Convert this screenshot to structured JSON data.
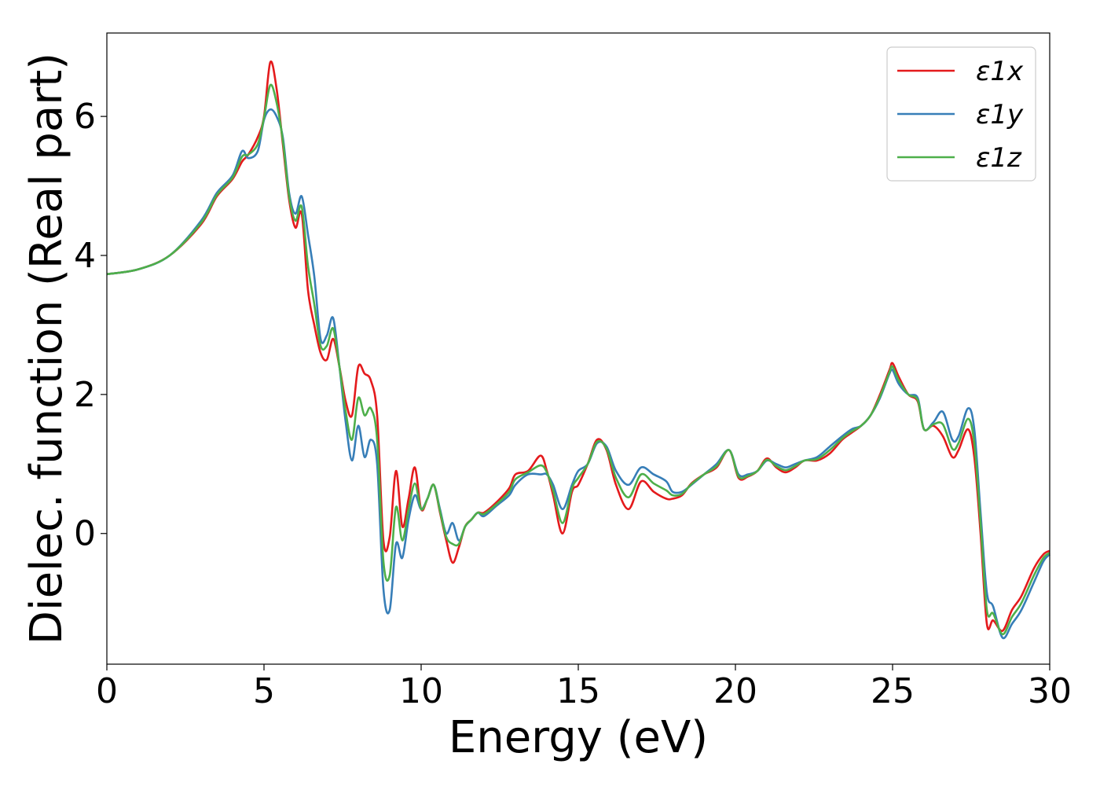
{
  "chart_data": {
    "type": "line",
    "xlabel": "Energy (eV)",
    "ylabel": "Dielec. function (Real part)",
    "xlim": [
      0,
      30
    ],
    "ylim": [
      -1.88,
      7.2
    ],
    "xticks": [
      0,
      5,
      10,
      15,
      20,
      25,
      30
    ],
    "yticks": [
      0,
      2,
      4,
      6
    ],
    "legend_position": "top-right",
    "grid": false,
    "series": [
      {
        "name": "ε1x",
        "color": "#e41a1c",
        "x": [
          0,
          1,
          2,
          3,
          3.5,
          4,
          4.3,
          4.5,
          4.8,
          5.0,
          5.2,
          5.4,
          5.6,
          5.8,
          6.0,
          6.2,
          6.4,
          6.6,
          6.8,
          7.0,
          7.2,
          7.4,
          7.6,
          7.8,
          8.0,
          8.2,
          8.4,
          8.6,
          8.8,
          9.0,
          9.2,
          9.4,
          9.6,
          9.8,
          10.0,
          10.2,
          10.4,
          10.6,
          10.8,
          11.0,
          11.2,
          11.4,
          11.6,
          11.8,
          12.0,
          12.4,
          12.8,
          13.0,
          13.4,
          13.8,
          14.0,
          14.2,
          14.5,
          14.8,
          15.0,
          15.3,
          15.6,
          15.9,
          16.2,
          16.6,
          17.0,
          17.4,
          17.8,
          18.0,
          18.3,
          18.6,
          19.0,
          19.4,
          19.8,
          20.1,
          20.4,
          20.7,
          21.0,
          21.3,
          21.6,
          21.9,
          22.2,
          22.6,
          23.0,
          23.4,
          23.7,
          24.0,
          24.3,
          24.6,
          24.9,
          25.0,
          25.2,
          25.5,
          25.8,
          26.0,
          26.3,
          26.6,
          26.9,
          27.1,
          27.4,
          27.6,
          27.8,
          28.0,
          28.2,
          28.5,
          28.8,
          29.1,
          29.5,
          29.8,
          30.0
        ],
        "y": [
          3.73,
          3.8,
          4.0,
          4.45,
          4.85,
          5.1,
          5.35,
          5.45,
          5.7,
          6.0,
          6.78,
          6.4,
          5.6,
          4.8,
          4.4,
          4.6,
          3.5,
          3.0,
          2.6,
          2.5,
          2.8,
          2.4,
          1.9,
          1.7,
          2.4,
          2.3,
          2.2,
          1.7,
          -0.1,
          -0.05,
          0.9,
          0.1,
          0.5,
          0.95,
          0.35,
          0.5,
          0.7,
          0.3,
          -0.1,
          -0.42,
          -0.2,
          0.1,
          0.2,
          0.3,
          0.3,
          0.45,
          0.65,
          0.85,
          0.9,
          1.12,
          0.9,
          0.55,
          0.0,
          0.6,
          0.7,
          1.0,
          1.35,
          1.2,
          0.7,
          0.35,
          0.75,
          0.6,
          0.5,
          0.5,
          0.55,
          0.72,
          0.85,
          0.95,
          1.2,
          0.8,
          0.82,
          0.9,
          1.08,
          0.95,
          0.88,
          0.95,
          1.05,
          1.05,
          1.15,
          1.35,
          1.45,
          1.55,
          1.7,
          2.0,
          2.35,
          2.45,
          2.25,
          2.0,
          1.9,
          1.5,
          1.55,
          1.4,
          1.1,
          1.2,
          1.5,
          1.1,
          0.0,
          -1.3,
          -1.25,
          -1.4,
          -1.1,
          -0.9,
          -0.5,
          -0.3,
          -0.25
        ]
      },
      {
        "name": "ε1y",
        "color": "#377eb8",
        "x": [
          0,
          1,
          2,
          3,
          3.5,
          4,
          4.3,
          4.5,
          4.8,
          5.0,
          5.2,
          5.4,
          5.6,
          5.8,
          6.0,
          6.2,
          6.4,
          6.6,
          6.8,
          7.0,
          7.2,
          7.4,
          7.6,
          7.8,
          8.0,
          8.2,
          8.4,
          8.6,
          8.8,
          9.0,
          9.2,
          9.4,
          9.6,
          9.8,
          10.0,
          10.2,
          10.4,
          10.6,
          10.8,
          11.0,
          11.2,
          11.4,
          11.6,
          11.8,
          12.0,
          12.4,
          12.8,
          13.0,
          13.4,
          13.8,
          14.0,
          14.2,
          14.5,
          14.8,
          15.0,
          15.3,
          15.6,
          15.9,
          16.2,
          16.6,
          17.0,
          17.4,
          17.8,
          18.0,
          18.3,
          18.6,
          19.0,
          19.4,
          19.8,
          20.1,
          20.4,
          20.7,
          21.0,
          21.3,
          21.6,
          21.9,
          22.2,
          22.6,
          23.0,
          23.4,
          23.7,
          24.0,
          24.3,
          24.6,
          24.9,
          25.0,
          25.2,
          25.5,
          25.8,
          26.0,
          26.3,
          26.6,
          26.9,
          27.1,
          27.4,
          27.6,
          27.8,
          28.0,
          28.2,
          28.5,
          28.8,
          29.1,
          29.5,
          29.8,
          30.0
        ],
        "y": [
          3.73,
          3.8,
          4.0,
          4.5,
          4.9,
          5.15,
          5.5,
          5.4,
          5.5,
          5.95,
          6.1,
          6.0,
          5.7,
          4.9,
          4.6,
          4.85,
          4.3,
          3.7,
          2.8,
          2.85,
          3.1,
          2.4,
          1.6,
          1.05,
          1.55,
          1.1,
          1.35,
          1.0,
          -0.8,
          -1.1,
          -0.15,
          -0.35,
          0.2,
          0.55,
          0.35,
          0.5,
          0.7,
          0.35,
          0.0,
          0.15,
          -0.1,
          0.1,
          0.2,
          0.3,
          0.25,
          0.4,
          0.55,
          0.7,
          0.85,
          0.85,
          0.85,
          0.7,
          0.35,
          0.7,
          0.9,
          1.0,
          1.3,
          1.25,
          0.9,
          0.7,
          0.95,
          0.85,
          0.75,
          0.6,
          0.6,
          0.7,
          0.85,
          1.0,
          1.2,
          0.85,
          0.85,
          0.9,
          1.05,
          1.0,
          0.95,
          1.0,
          1.05,
          1.1,
          1.25,
          1.4,
          1.5,
          1.55,
          1.7,
          1.95,
          2.3,
          2.35,
          2.15,
          2.0,
          1.95,
          1.5,
          1.6,
          1.75,
          1.35,
          1.4,
          1.8,
          1.5,
          0.3,
          -0.85,
          -1.05,
          -1.5,
          -1.3,
          -1.1,
          -0.7,
          -0.4,
          -0.3
        ]
      },
      {
        "name": "ε1z",
        "color": "#4daf4a",
        "x": [
          0,
          1,
          2,
          3,
          3.5,
          4,
          4.3,
          4.5,
          4.8,
          5.0,
          5.2,
          5.4,
          5.6,
          5.8,
          6.0,
          6.2,
          6.4,
          6.6,
          6.8,
          7.0,
          7.2,
          7.4,
          7.6,
          7.8,
          8.0,
          8.2,
          8.4,
          8.6,
          8.8,
          9.0,
          9.2,
          9.4,
          9.6,
          9.8,
          10.0,
          10.2,
          10.4,
          10.6,
          10.8,
          11.0,
          11.2,
          11.4,
          11.6,
          11.8,
          12.0,
          12.4,
          12.8,
          13.0,
          13.4,
          13.8,
          14.0,
          14.2,
          14.5,
          14.8,
          15.0,
          15.3,
          15.6,
          15.9,
          16.2,
          16.6,
          17.0,
          17.4,
          17.8,
          18.0,
          18.3,
          18.6,
          19.0,
          19.4,
          19.8,
          20.1,
          20.4,
          20.7,
          21.0,
          21.3,
          21.6,
          21.9,
          22.2,
          22.6,
          23.0,
          23.4,
          23.7,
          24.0,
          24.3,
          24.6,
          24.9,
          25.0,
          25.2,
          25.5,
          25.8,
          26.0,
          26.3,
          26.6,
          26.9,
          27.1,
          27.4,
          27.6,
          27.8,
          28.0,
          28.2,
          28.5,
          28.8,
          29.1,
          29.5,
          29.8,
          30.0
        ],
        "y": [
          3.73,
          3.8,
          4.0,
          4.47,
          4.87,
          5.12,
          5.42,
          5.45,
          5.6,
          5.98,
          6.45,
          6.2,
          5.65,
          4.85,
          4.5,
          4.7,
          3.85,
          3.3,
          2.7,
          2.7,
          2.95,
          2.4,
          1.75,
          1.35,
          1.95,
          1.7,
          1.8,
          1.35,
          -0.4,
          -0.6,
          0.38,
          -0.1,
          0.35,
          0.72,
          0.35,
          0.5,
          0.7,
          0.32,
          -0.05,
          -0.15,
          -0.15,
          0.1,
          0.2,
          0.3,
          0.28,
          0.42,
          0.6,
          0.78,
          0.88,
          0.98,
          0.88,
          0.62,
          0.15,
          0.65,
          0.8,
          1.0,
          1.32,
          1.22,
          0.8,
          0.52,
          0.85,
          0.72,
          0.62,
          0.55,
          0.57,
          0.71,
          0.85,
          0.97,
          1.2,
          0.82,
          0.83,
          0.9,
          1.06,
          0.97,
          0.91,
          0.97,
          1.05,
          1.07,
          1.2,
          1.37,
          1.47,
          1.55,
          1.7,
          1.97,
          2.32,
          2.4,
          2.2,
          2.0,
          1.92,
          1.5,
          1.57,
          1.57,
          1.22,
          1.3,
          1.65,
          1.3,
          0.15,
          -1.1,
          -1.15,
          -1.45,
          -1.2,
          -1.0,
          -0.6,
          -0.35,
          -0.28
        ]
      }
    ]
  }
}
